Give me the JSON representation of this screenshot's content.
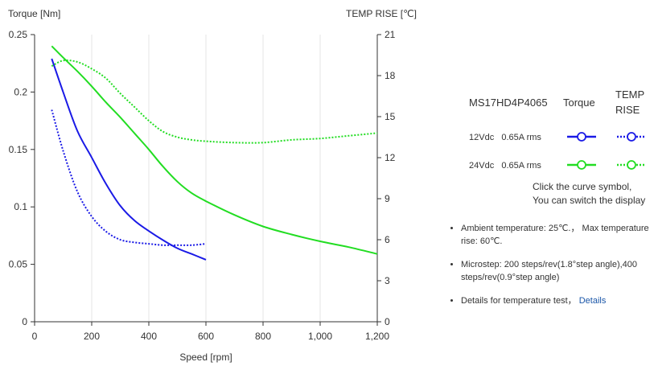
{
  "chart_data": {
    "type": "line",
    "xlabel": "Speed [rpm]",
    "ylabel_left": "Torque  [Nm]",
    "ylabel_right": "TEMP RISE [℃]",
    "xlim": [
      0,
      1200
    ],
    "ylim_left": [
      0,
      0.25
    ],
    "ylim_right": [
      0,
      21
    ],
    "x_ticks": [
      0,
      200,
      400,
      600,
      800,
      1000,
      1200
    ],
    "x_tick_labels": [
      "0",
      "200",
      "400",
      "600",
      "800",
      "1,000",
      "1,200"
    ],
    "y_left_ticks": [
      0,
      0.05,
      0.1,
      0.15,
      0.2,
      0.25
    ],
    "y_left_tick_labels": [
      "0",
      "0.05",
      "0.1",
      "0.15",
      "0.2",
      "0.25"
    ],
    "y_right_ticks": [
      0,
      3,
      6,
      9,
      12,
      15,
      18,
      21
    ],
    "y_right_tick_labels": [
      "0",
      "3",
      "6",
      "9",
      "12",
      "15",
      "18",
      "21"
    ],
    "grid": "vertical",
    "legend_position": "right",
    "series": [
      {
        "name": "12Vdc Torque",
        "axis": "left",
        "style": "solid",
        "color": "#1a1ae6",
        "x": [
          60,
          100,
          150,
          200,
          250,
          300,
          350,
          400,
          450,
          500,
          550,
          600
        ],
        "y": [
          0.229,
          0.2,
          0.166,
          0.143,
          0.12,
          0.101,
          0.088,
          0.079,
          0.071,
          0.064,
          0.059,
          0.054
        ]
      },
      {
        "name": "12Vdc TEMP RISE",
        "axis": "right",
        "style": "dotted",
        "color": "#1a1ae6",
        "x": [
          60,
          100,
          150,
          200,
          250,
          300,
          350,
          400,
          450,
          500,
          550,
          600
        ],
        "y": [
          15.5,
          12.5,
          9.5,
          7.7,
          6.6,
          6.0,
          5.8,
          5.7,
          5.6,
          5.6,
          5.6,
          5.7
        ]
      },
      {
        "name": "24Vdc Torque",
        "axis": "left",
        "style": "solid",
        "color": "#22dd22",
        "x": [
          60,
          100,
          150,
          200,
          250,
          300,
          350,
          400,
          450,
          500,
          550,
          600,
          700,
          800,
          900,
          1000,
          1100,
          1200
        ],
        "y": [
          0.24,
          0.23,
          0.218,
          0.205,
          0.191,
          0.178,
          0.164,
          0.15,
          0.135,
          0.122,
          0.112,
          0.105,
          0.093,
          0.083,
          0.076,
          0.07,
          0.065,
          0.059
        ]
      },
      {
        "name": "24Vdc TEMP RISE",
        "axis": "right",
        "style": "dotted",
        "color": "#22dd22",
        "x": [
          60,
          100,
          150,
          200,
          250,
          300,
          350,
          400,
          450,
          500,
          550,
          600,
          700,
          800,
          900,
          1000,
          1100,
          1200
        ],
        "y": [
          18.7,
          19.1,
          19.0,
          18.5,
          17.8,
          16.7,
          15.7,
          14.7,
          13.9,
          13.5,
          13.3,
          13.2,
          13.1,
          13.1,
          13.3,
          13.4,
          13.6,
          13.8
        ]
      }
    ]
  },
  "legend": {
    "model": "MS17HD4P4065",
    "col_torque": "Torque",
    "col_temp_line1": "TEMP",
    "col_temp_line2": "RISE",
    "rows": [
      {
        "voltage": "12Vdc",
        "current": "0.65A rms",
        "color": "#1a1ae6"
      },
      {
        "voltage": "24Vdc",
        "current": "0.65A rms",
        "color": "#22dd22"
      }
    ],
    "hint_line1": "Click the curve symbol,",
    "hint_line2": "You can switch the display"
  },
  "notes": {
    "ambient": "Ambient temperature: 25℃.， Max temperature rise: 60℃.",
    "microstep": "Microstep: 200 steps/rev(1.8°step angle),400 steps/rev(0.9°step angle)",
    "details_prefix": "Details for temperature test，",
    "details_link": "Details"
  }
}
